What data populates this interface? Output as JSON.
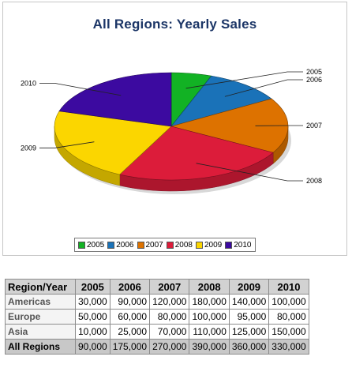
{
  "chart_data": {
    "type": "pie",
    "title": "All Regions: Yearly Sales",
    "categories": [
      "2005",
      "2006",
      "2007",
      "2008",
      "2009",
      "2010"
    ],
    "values": [
      90000,
      175000,
      270000,
      390000,
      360000,
      330000
    ],
    "colors": [
      "#12b224",
      "#1a72b8",
      "#dd7200",
      "#dc1c3a",
      "#fbd600",
      "#3c0aa0"
    ],
    "legend_position": "bottom",
    "style": "3d-tilted"
  },
  "table": {
    "corner_header": "Region/Year",
    "columns": [
      "2005",
      "2006",
      "2007",
      "2008",
      "2009",
      "2010"
    ],
    "rows": [
      {
        "label": "Americas",
        "values": [
          "30,000",
          "90,000",
          "120,000",
          "180,000",
          "140,000",
          "100,000"
        ]
      },
      {
        "label": "Europe",
        "values": [
          "50,000",
          "60,000",
          "80,000",
          "100,000",
          "95,000",
          "80,000"
        ]
      },
      {
        "label": "Asia",
        "values": [
          "10,000",
          "25,000",
          "70,000",
          "110,000",
          "125,000",
          "150,000"
        ]
      },
      {
        "label": "All Regions",
        "values": [
          "90,000",
          "175,000",
          "270,000",
          "390,000",
          "360,000",
          "330,000"
        ]
      }
    ]
  }
}
